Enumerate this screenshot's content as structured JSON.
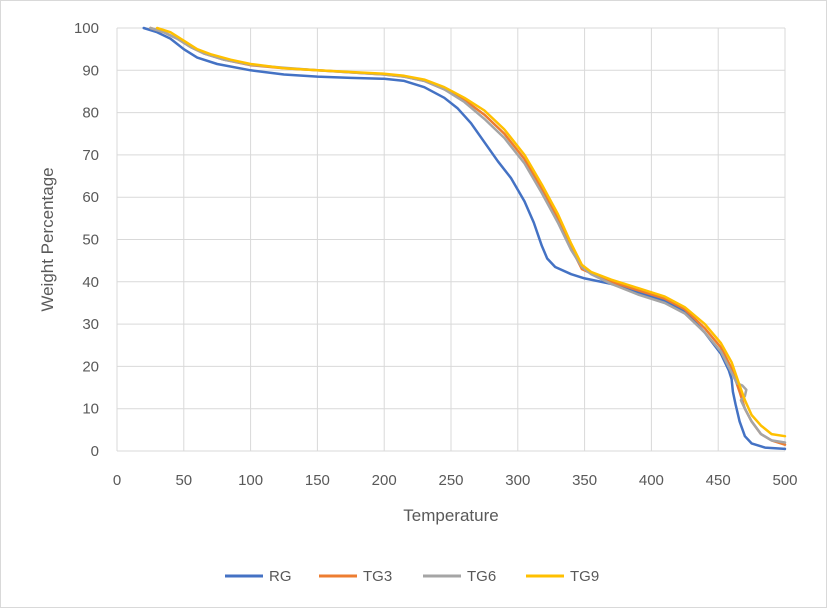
{
  "chart_data": {
    "type": "line",
    "title": "",
    "xlabel": "Temperature",
    "ylabel": "Weight Percentage",
    "xlim": [
      0,
      500
    ],
    "ylim": [
      0,
      100
    ],
    "xticks": [
      0,
      50,
      100,
      150,
      200,
      250,
      300,
      350,
      400,
      450,
      500
    ],
    "yticks": [
      0,
      10,
      20,
      30,
      40,
      50,
      60,
      70,
      80,
      90,
      100
    ],
    "grid": "vertical-and-horizontal",
    "legend_position": "bottom",
    "series": [
      {
        "name": "RG",
        "color": "#4472C4",
        "points": [
          [
            20,
            100
          ],
          [
            30,
            99
          ],
          [
            40,
            97.5
          ],
          [
            50,
            95
          ],
          [
            60,
            93
          ],
          [
            75,
            91.5
          ],
          [
            100,
            90
          ],
          [
            125,
            89
          ],
          [
            150,
            88.5
          ],
          [
            175,
            88.2
          ],
          [
            200,
            88
          ],
          [
            215,
            87.5
          ],
          [
            230,
            86
          ],
          [
            245,
            83.5
          ],
          [
            255,
            81
          ],
          [
            265,
            77.5
          ],
          [
            275,
            73
          ],
          [
            285,
            68.5
          ],
          [
            295,
            64.5
          ],
          [
            305,
            59
          ],
          [
            312,
            54
          ],
          [
            318,
            48.5
          ],
          [
            322,
            45.5
          ],
          [
            328,
            43.5
          ],
          [
            340,
            41.8
          ],
          [
            350,
            40.8
          ],
          [
            370,
            39.5
          ],
          [
            390,
            37.5
          ],
          [
            410,
            35.5
          ],
          [
            425,
            33
          ],
          [
            440,
            28
          ],
          [
            452,
            23
          ],
          [
            458,
            19
          ],
          [
            460,
            17
          ],
          [
            461,
            14
          ],
          [
            463,
            11
          ],
          [
            466,
            7
          ],
          [
            470,
            3.5
          ],
          [
            475,
            1.8
          ],
          [
            485,
            0.8
          ],
          [
            500,
            0.5
          ]
        ]
      },
      {
        "name": "TG3",
        "color": "#ED7D31",
        "points": [
          [
            25,
            100
          ],
          [
            35,
            99
          ],
          [
            45,
            97.5
          ],
          [
            55,
            95.5
          ],
          [
            65,
            94
          ],
          [
            80,
            92.5
          ],
          [
            100,
            91.2
          ],
          [
            125,
            90.5
          ],
          [
            150,
            90
          ],
          [
            175,
            89.5
          ],
          [
            200,
            89
          ],
          [
            215,
            88.5
          ],
          [
            230,
            87.5
          ],
          [
            245,
            85.5
          ],
          [
            260,
            83
          ],
          [
            275,
            79.5
          ],
          [
            290,
            75
          ],
          [
            305,
            69
          ],
          [
            318,
            62
          ],
          [
            330,
            55
          ],
          [
            340,
            48
          ],
          [
            348,
            43
          ],
          [
            355,
            42
          ],
          [
            370,
            40
          ],
          [
            390,
            38
          ],
          [
            410,
            36
          ],
          [
            425,
            33.5
          ],
          [
            440,
            29
          ],
          [
            452,
            24.5
          ],
          [
            460,
            19.5
          ],
          [
            466,
            14
          ],
          [
            470,
            10
          ],
          [
            475,
            7
          ],
          [
            482,
            4
          ],
          [
            490,
            2.5
          ],
          [
            500,
            1.5
          ]
        ]
      },
      {
        "name": "TG6",
        "color": "#A5A5A5",
        "points": [
          [
            25,
            100
          ],
          [
            35,
            99
          ],
          [
            45,
            97.5
          ],
          [
            55,
            95.5
          ],
          [
            65,
            94
          ],
          [
            80,
            92.5
          ],
          [
            100,
            91.3
          ],
          [
            125,
            90.6
          ],
          [
            150,
            90
          ],
          [
            175,
            89.5
          ],
          [
            200,
            89
          ],
          [
            215,
            88.5
          ],
          [
            230,
            87.5
          ],
          [
            245,
            85.5
          ],
          [
            260,
            82.5
          ],
          [
            275,
            78.5
          ],
          [
            290,
            74
          ],
          [
            305,
            68
          ],
          [
            318,
            61
          ],
          [
            330,
            54
          ],
          [
            340,
            47.5
          ],
          [
            348,
            43.5
          ],
          [
            355,
            41.8
          ],
          [
            370,
            39.5
          ],
          [
            390,
            37
          ],
          [
            410,
            35
          ],
          [
            425,
            32.5
          ],
          [
            440,
            28
          ],
          [
            452,
            23.5
          ],
          [
            460,
            18.5
          ],
          [
            464,
            16
          ],
          [
            468,
            15.5
          ],
          [
            471,
            14.5
          ],
          [
            470,
            13
          ],
          [
            467,
            12
          ],
          [
            470,
            10
          ],
          [
            475,
            7
          ],
          [
            482,
            4
          ],
          [
            490,
            2.5
          ],
          [
            500,
            2
          ]
        ]
      },
      {
        "name": "TG9",
        "color": "#FFC000",
        "points": [
          [
            30,
            100
          ],
          [
            40,
            99
          ],
          [
            50,
            97
          ],
          [
            60,
            95
          ],
          [
            70,
            93.8
          ],
          [
            85,
            92.5
          ],
          [
            100,
            91.5
          ],
          [
            125,
            90.5
          ],
          [
            150,
            90
          ],
          [
            175,
            89.6
          ],
          [
            200,
            89.2
          ],
          [
            215,
            88.7
          ],
          [
            230,
            87.8
          ],
          [
            245,
            86
          ],
          [
            260,
            83.5
          ],
          [
            275,
            80.5
          ],
          [
            290,
            76
          ],
          [
            305,
            70
          ],
          [
            318,
            63
          ],
          [
            330,
            56
          ],
          [
            340,
            49
          ],
          [
            348,
            44
          ],
          [
            355,
            42.3
          ],
          [
            370,
            40.5
          ],
          [
            390,
            38.5
          ],
          [
            410,
            36.5
          ],
          [
            425,
            34
          ],
          [
            440,
            30
          ],
          [
            452,
            25.5
          ],
          [
            460,
            21
          ],
          [
            466,
            15.5
          ],
          [
            470,
            12
          ],
          [
            475,
            8.5
          ],
          [
            482,
            6
          ],
          [
            490,
            4
          ],
          [
            500,
            3.5
          ]
        ]
      }
    ]
  }
}
